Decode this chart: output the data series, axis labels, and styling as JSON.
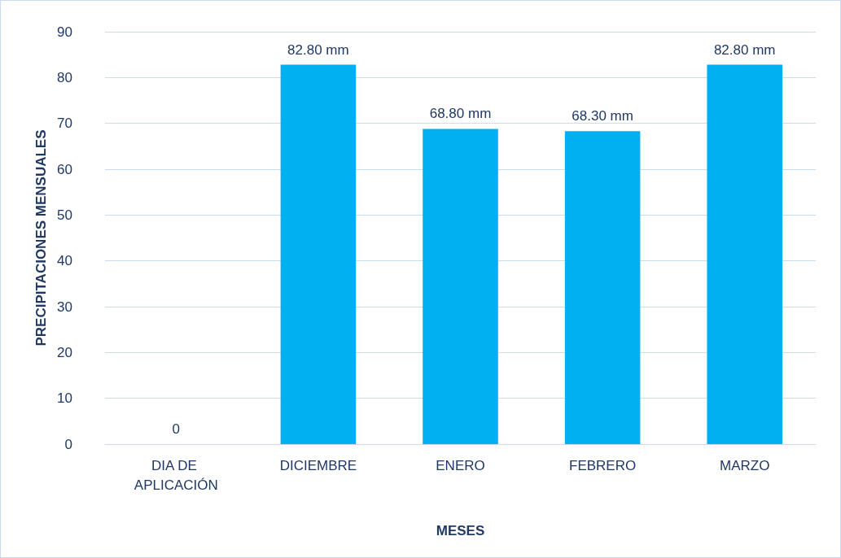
{
  "chart_data": {
    "type": "bar",
    "xlabel": "MESES",
    "ylabel": "PRECIPITACIONES MENSUALES",
    "categories": [
      "DIA DE APLICACIÓN",
      "DICIEMBRE",
      "ENERO",
      "FEBRERO",
      "MARZO"
    ],
    "values": [
      0,
      82.8,
      68.8,
      68.3,
      82.8
    ],
    "value_labels": [
      "0",
      "82.80 mm",
      "68.80 mm",
      "68.30 mm",
      "82.80 mm"
    ],
    "color": "#00b0f0",
    "ylim": [
      0,
      90
    ],
    "yticks": [
      0,
      10,
      20,
      30,
      40,
      50,
      60,
      70,
      80,
      90
    ],
    "grid": "y"
  }
}
